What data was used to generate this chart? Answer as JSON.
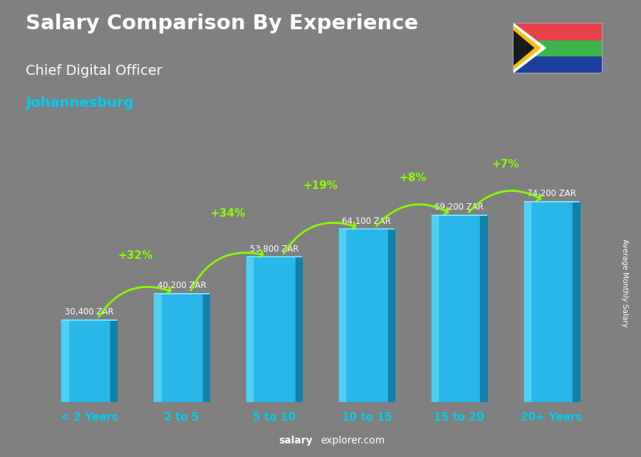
{
  "categories": [
    "< 2 Years",
    "2 to 5",
    "5 to 10",
    "10 to 15",
    "15 to 20",
    "20+ Years"
  ],
  "values": [
    30400,
    40200,
    53800,
    64100,
    69200,
    74200
  ],
  "labels": [
    "30,400 ZAR",
    "40,200 ZAR",
    "53,800 ZAR",
    "64,100 ZAR",
    "69,200 ZAR",
    "74,200 ZAR"
  ],
  "pct_labels": [
    "+32%",
    "+34%",
    "+19%",
    "+8%",
    "+7%"
  ],
  "bar_face_color": "#29b6e8",
  "bar_left_color": "#55d4f5",
  "bar_right_color": "#1280a8",
  "bar_top_color": "#7ae0ff",
  "title1": "Salary Comparison By Experience",
  "title2": "Chief Digital Officer",
  "title3": "Johannesburg",
  "ylabel": "Average Monthly Salary",
  "footer_bold": "salary",
  "footer_regular": "explorer.com",
  "bg_color": "#808080",
  "text_color_white": "#ffffff",
  "text_color_cyan": "#00ccee",
  "arrow_color": "#88ff00",
  "ylim": [
    0,
    88000
  ],
  "bar_width": 0.6
}
